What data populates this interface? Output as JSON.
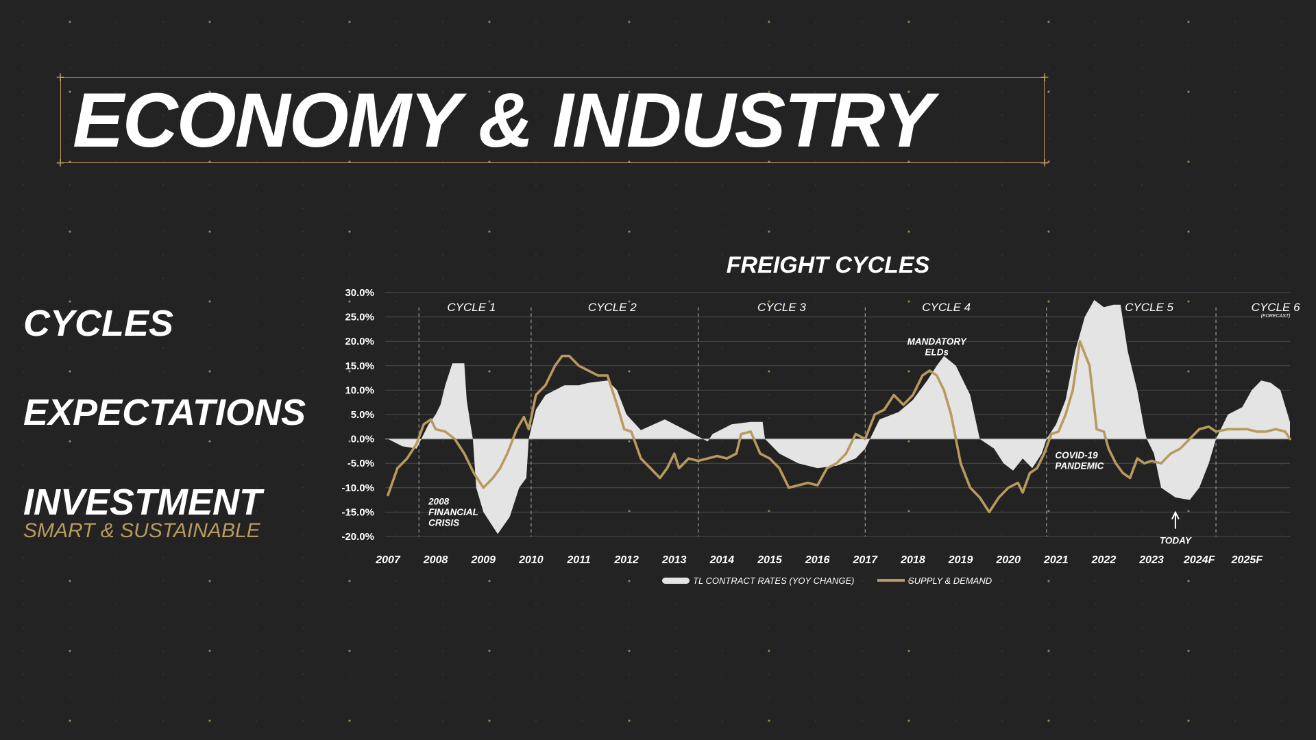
{
  "header": {
    "title": "ECONOMY & INDUSTRY"
  },
  "sidebar": {
    "items": [
      {
        "label": "CYCLES"
      },
      {
        "label": "EXPECTATIONS"
      },
      {
        "label": "INVESTMENT"
      }
    ],
    "subtitle": "SMART & SUSTAINABLE"
  },
  "colors": {
    "background": "#232323",
    "accent_gold": "#b89a5e",
    "area_fill": "#e4e4e4",
    "text": "#ffffff"
  },
  "chart_data": {
    "type": "area",
    "title": "FREIGHT CYCLES",
    "ylim": [
      -20,
      30
    ],
    "yticks": [
      "30.0%",
      "25.0%",
      "20.0%",
      "15.0%",
      "10.0%",
      "5.0%",
      "0.0%",
      "-5.0%",
      "-10.0%",
      "-15.0%",
      "-20.0%"
    ],
    "yticks_values": [
      30,
      25,
      20,
      15,
      10,
      5,
      0,
      -5,
      -10,
      -15,
      -20
    ],
    "xlim": [
      2007,
      2025.9
    ],
    "xticks": [
      "2007",
      "2008",
      "2009",
      "2010",
      "2011",
      "2012",
      "2013",
      "2014",
      "2015",
      "2016",
      "2017",
      "2018",
      "2019",
      "2020",
      "2021",
      "2022",
      "2023",
      "2024F",
      "2025F"
    ],
    "xticks_values": [
      2007,
      2008,
      2009,
      2010,
      2011,
      2012,
      2013,
      2014,
      2015,
      2016,
      2017,
      2018,
      2019,
      2020,
      2021,
      2022,
      2023,
      2024,
      2025
    ],
    "grid": true,
    "legend_position": "bottom",
    "cycles": [
      {
        "label": "CYCLE 1",
        "center": 2008.75
      },
      {
        "label": "CYCLE 2",
        "center": 2011.7
      },
      {
        "label": "CYCLE 3",
        "center": 2015.25
      },
      {
        "label": "CYCLE 4",
        "center": 2018.7
      },
      {
        "label": "CYCLE 5",
        "center": 2022.95
      },
      {
        "label": "CYCLE 6",
        "center": 2025.6,
        "note": "(FORECAST)"
      }
    ],
    "cycle_dividers": [
      2007.65,
      2010.0,
      2013.5,
      2017.0,
      2020.8,
      2024.35
    ],
    "annotations": [
      {
        "lines": [
          "2008",
          "FINANCIAL",
          "CRISIS"
        ],
        "x": 2007.85,
        "y": -13.5,
        "align": "start"
      },
      {
        "lines": [
          "MANDATORY",
          "ELDs"
        ],
        "x": 2018.5,
        "y": 19.3,
        "align": "middle"
      },
      {
        "lines": [
          "COVID-19",
          "PANDEMIC"
        ],
        "x": 2020.98,
        "y": -4.0,
        "align": "start"
      },
      {
        "lines": [
          "TODAY"
        ],
        "x": 2023.5,
        "y": -21.5,
        "align": "middle",
        "arrow": true
      }
    ],
    "series": [
      {
        "name": "TL CONTRACT RATES (YOY CHANGE)",
        "kind": "area",
        "color": "#e4e4e4",
        "points": [
          [
            2007.0,
            0
          ],
          [
            2007.3,
            -1.5
          ],
          [
            2007.6,
            -2.0
          ],
          [
            2007.7,
            0
          ],
          [
            2007.85,
            3
          ],
          [
            2008.0,
            5
          ],
          [
            2008.1,
            7
          ],
          [
            2008.2,
            11
          ],
          [
            2008.35,
            15.5
          ],
          [
            2008.6,
            15.5
          ],
          [
            2008.65,
            8
          ],
          [
            2008.72,
            3.5
          ],
          [
            2008.78,
            0
          ],
          [
            2008.85,
            -10
          ],
          [
            2009.0,
            -15
          ],
          [
            2009.3,
            -19.5
          ],
          [
            2009.55,
            -16
          ],
          [
            2009.75,
            -10
          ],
          [
            2009.9,
            -8
          ],
          [
            2009.95,
            0
          ],
          [
            2010.1,
            6
          ],
          [
            2010.3,
            9
          ],
          [
            2010.5,
            10
          ],
          [
            2010.7,
            11
          ],
          [
            2011.0,
            11
          ],
          [
            2011.2,
            11.5
          ],
          [
            2011.6,
            12
          ],
          [
            2011.8,
            10
          ],
          [
            2012.0,
            5
          ],
          [
            2012.3,
            1.8
          ],
          [
            2012.8,
            4
          ],
          [
            2013.2,
            2
          ],
          [
            2013.5,
            0.5
          ],
          [
            2013.7,
            -0.5
          ],
          [
            2013.8,
            1
          ],
          [
            2014.2,
            3
          ],
          [
            2014.6,
            3.5
          ],
          [
            2014.85,
            3.5
          ],
          [
            2014.9,
            0
          ],
          [
            2015.2,
            -3
          ],
          [
            2015.6,
            -5
          ],
          [
            2016.0,
            -6
          ],
          [
            2016.4,
            -5.5
          ],
          [
            2016.8,
            -4
          ],
          [
            2017.0,
            -2
          ],
          [
            2017.1,
            0
          ],
          [
            2017.3,
            4
          ],
          [
            2017.7,
            5.5
          ],
          [
            2018.0,
            8
          ],
          [
            2018.3,
            12
          ],
          [
            2018.5,
            15
          ],
          [
            2018.65,
            17
          ],
          [
            2018.9,
            15
          ],
          [
            2019.2,
            9
          ],
          [
            2019.4,
            0
          ],
          [
            2019.7,
            -2
          ],
          [
            2019.9,
            -5
          ],
          [
            2020.1,
            -6.5
          ],
          [
            2020.3,
            -4
          ],
          [
            2020.5,
            -6
          ],
          [
            2020.7,
            -3
          ],
          [
            2020.8,
            0
          ],
          [
            2021.0,
            3
          ],
          [
            2021.2,
            8
          ],
          [
            2021.4,
            18
          ],
          [
            2021.6,
            25
          ],
          [
            2021.8,
            28.5
          ],
          [
            2022.0,
            27
          ],
          [
            2022.2,
            27.5
          ],
          [
            2022.35,
            27.5
          ],
          [
            2022.5,
            18
          ],
          [
            2022.7,
            10
          ],
          [
            2022.85,
            2
          ],
          [
            2022.9,
            0
          ],
          [
            2023.05,
            -3
          ],
          [
            2023.2,
            -10
          ],
          [
            2023.5,
            -12
          ],
          [
            2023.8,
            -12.5
          ],
          [
            2024.0,
            -10
          ],
          [
            2024.2,
            -5
          ],
          [
            2024.35,
            0
          ],
          [
            2024.6,
            5
          ],
          [
            2024.9,
            6.5
          ],
          [
            2025.1,
            10
          ],
          [
            2025.3,
            12
          ],
          [
            2025.5,
            11.5
          ],
          [
            2025.7,
            10
          ],
          [
            2025.9,
            3.5
          ]
        ]
      },
      {
        "name": "SUPPLY & DEMAND",
        "kind": "line",
        "color": "#b89a5e",
        "points": [
          [
            2007.0,
            -11.5
          ],
          [
            2007.2,
            -6
          ],
          [
            2007.4,
            -4
          ],
          [
            2007.6,
            -1
          ],
          [
            2007.75,
            3
          ],
          [
            2007.9,
            4
          ],
          [
            2008.0,
            2
          ],
          [
            2008.2,
            1.5
          ],
          [
            2008.4,
            0
          ],
          [
            2008.6,
            -3
          ],
          [
            2008.8,
            -7
          ],
          [
            2009.0,
            -10
          ],
          [
            2009.2,
            -8
          ],
          [
            2009.35,
            -6
          ],
          [
            2009.5,
            -3
          ],
          [
            2009.7,
            2
          ],
          [
            2009.85,
            4.5
          ],
          [
            2009.95,
            2
          ],
          [
            2010.1,
            9
          ],
          [
            2010.3,
            11
          ],
          [
            2010.5,
            15
          ],
          [
            2010.65,
            17
          ],
          [
            2010.8,
            17
          ],
          [
            2011.0,
            15
          ],
          [
            2011.2,
            14
          ],
          [
            2011.4,
            13
          ],
          [
            2011.6,
            13
          ],
          [
            2011.8,
            7
          ],
          [
            2011.95,
            2
          ],
          [
            2012.1,
            1.5
          ],
          [
            2012.3,
            -4
          ],
          [
            2012.5,
            -6
          ],
          [
            2012.7,
            -8
          ],
          [
            2012.85,
            -6
          ],
          [
            2013.0,
            -3
          ],
          [
            2013.1,
            -6
          ],
          [
            2013.3,
            -4
          ],
          [
            2013.5,
            -4.5
          ],
          [
            2013.7,
            -4
          ],
          [
            2013.9,
            -3.5
          ],
          [
            2014.1,
            -4
          ],
          [
            2014.3,
            -3
          ],
          [
            2014.4,
            1
          ],
          [
            2014.6,
            1.5
          ],
          [
            2014.8,
            -3
          ],
          [
            2015.0,
            -4
          ],
          [
            2015.2,
            -6
          ],
          [
            2015.4,
            -10
          ],
          [
            2015.6,
            -9.5
          ],
          [
            2015.8,
            -9
          ],
          [
            2016.0,
            -9.5
          ],
          [
            2016.2,
            -6
          ],
          [
            2016.4,
            -5
          ],
          [
            2016.6,
            -3
          ],
          [
            2016.8,
            1
          ],
          [
            2017.0,
            0
          ],
          [
            2017.2,
            5
          ],
          [
            2017.4,
            6
          ],
          [
            2017.6,
            9
          ],
          [
            2017.8,
            7
          ],
          [
            2018.0,
            9
          ],
          [
            2018.2,
            13
          ],
          [
            2018.35,
            14
          ],
          [
            2018.5,
            13
          ],
          [
            2018.65,
            10
          ],
          [
            2018.8,
            5
          ],
          [
            2019.0,
            -5
          ],
          [
            2019.2,
            -10
          ],
          [
            2019.4,
            -12
          ],
          [
            2019.6,
            -15
          ],
          [
            2019.8,
            -12
          ],
          [
            2020.0,
            -10
          ],
          [
            2020.2,
            -9
          ],
          [
            2020.3,
            -11
          ],
          [
            2020.45,
            -7
          ],
          [
            2020.6,
            -6
          ],
          [
            2020.75,
            -3
          ],
          [
            2020.9,
            1
          ],
          [
            2021.05,
            1.5
          ],
          [
            2021.2,
            5
          ],
          [
            2021.35,
            10
          ],
          [
            2021.5,
            20
          ],
          [
            2021.7,
            15
          ],
          [
            2021.85,
            2
          ],
          [
            2022.0,
            1.5
          ],
          [
            2022.1,
            -2
          ],
          [
            2022.25,
            -5
          ],
          [
            2022.4,
            -7
          ],
          [
            2022.55,
            -8
          ],
          [
            2022.7,
            -4
          ],
          [
            2022.85,
            -5
          ],
          [
            2023.0,
            -4.5
          ],
          [
            2023.2,
            -5
          ],
          [
            2023.4,
            -3
          ],
          [
            2023.6,
            -2
          ],
          [
            2023.8,
            0
          ],
          [
            2024.0,
            2
          ],
          [
            2024.2,
            2.5
          ],
          [
            2024.35,
            1.5
          ],
          [
            2024.6,
            2
          ],
          [
            2024.8,
            2
          ],
          [
            2025.0,
            2
          ],
          [
            2025.2,
            1.5
          ],
          [
            2025.4,
            1.5
          ],
          [
            2025.6,
            2
          ],
          [
            2025.8,
            1.5
          ],
          [
            2025.9,
            0
          ]
        ]
      }
    ],
    "legend": [
      {
        "label": "TL CONTRACT RATES (YOY CHANGE)",
        "swatch": "#e4e4e4"
      },
      {
        "label": "SUPPLY & DEMAND",
        "swatch": "#b89a5e"
      }
    ]
  }
}
